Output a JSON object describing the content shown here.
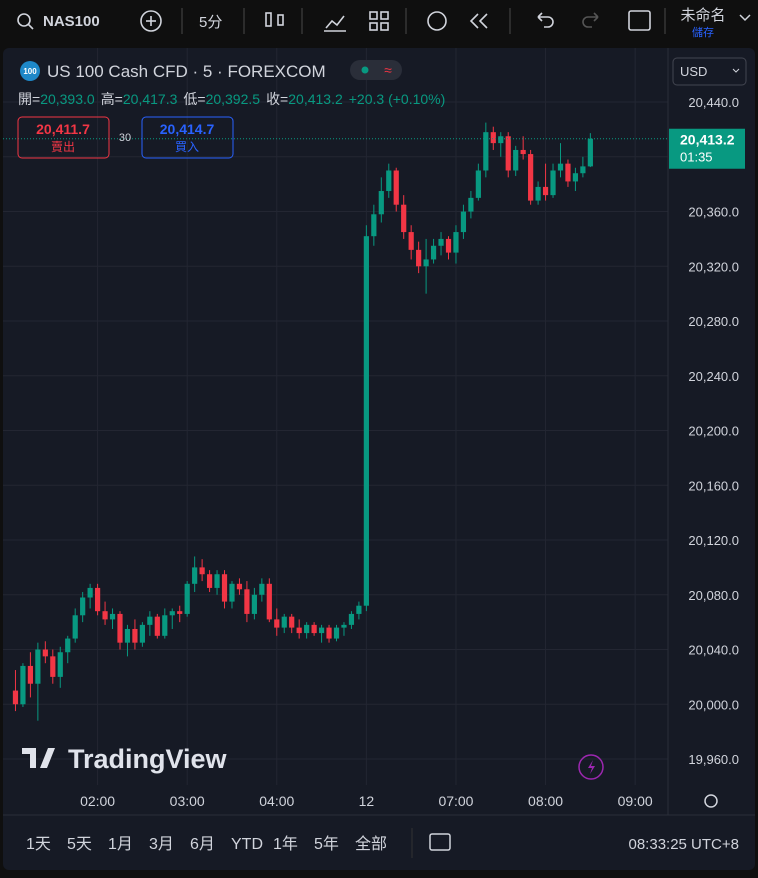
{
  "toolbar": {
    "symbol": "NAS100",
    "interval": "5分",
    "layout_name": "未命名",
    "save": "儲存"
  },
  "chart_data": {
    "type": "candlestick",
    "title": "US 100 Cash CFD · 5 · FOREXCOM",
    "legend": [
      {
        "key": "開=",
        "value": "20,393.0"
      },
      {
        "key": "高=",
        "value": "20,417.3"
      },
      {
        "key": "低=",
        "value": "20,392.5"
      },
      {
        "key": "收=",
        "value": "20,413.2"
      }
    ],
    "change": "+20.3 (+0.10%)",
    "sell": {
      "price": "20,411.7",
      "label": "賣出"
    },
    "spread": "30",
    "buy": {
      "price": "20,414.7",
      "label": "買入"
    },
    "currency": "USD",
    "last_price_label": "20,413.2",
    "countdown": "01:35",
    "watermark": "TradingView",
    "up_color": "#089981",
    "down_color": "#f23645",
    "grid": true,
    "open": [
      20010,
      20000,
      20028,
      20015,
      20040,
      20035,
      20020,
      20038,
      20048,
      20065,
      20078,
      20085,
      20068,
      20062,
      20066,
      20045,
      20055,
      20045,
      20058,
      20064,
      20050,
      20065,
      20068,
      20066,
      20088,
      20100,
      20095,
      20085,
      20095,
      20075,
      20088,
      20084,
      20066,
      20080,
      20088,
      20062,
      20056,
      20064,
      20056,
      20052,
      20058,
      20052,
      20056,
      20048,
      20056,
      20058,
      20066,
      20072,
      20342,
      20358,
      20375,
      20390,
      20365,
      20345,
      20332,
      20320,
      20325,
      20335,
      20340,
      20330,
      20345,
      20360,
      20370,
      20390,
      20418,
      20410,
      20415,
      20390,
      20405,
      20402,
      20368,
      20378,
      20372,
      20390,
      20395,
      20382,
      20388,
      20393.0
    ],
    "high": [
      20025,
      20030,
      20038,
      20045,
      20046,
      20040,
      20042,
      20050,
      20070,
      20082,
      20088,
      20088,
      20075,
      20070,
      20068,
      20058,
      20062,
      20060,
      20068,
      20066,
      20070,
      20070,
      20072,
      20090,
      20108,
      20106,
      20098,
      20098,
      20098,
      20090,
      20092,
      20090,
      20085,
      20092,
      20092,
      20070,
      20066,
      20066,
      20062,
      20060,
      20060,
      20058,
      20058,
      20058,
      20060,
      20068,
      20075,
      20350,
      20365,
      20385,
      20395,
      20392,
      20372,
      20350,
      20338,
      20340,
      20340,
      20345,
      20342,
      20350,
      20365,
      20375,
      20395,
      20425,
      20422,
      20418,
      20418,
      20408,
      20415,
      20405,
      20382,
      20395,
      20395,
      20410,
      20398,
      20392,
      20400,
      20417.3
    ],
    "low": [
      19995,
      19998,
      20005,
      19988,
      20030,
      20015,
      20012,
      20030,
      20045,
      20060,
      20070,
      20065,
      20058,
      20055,
      20040,
      20035,
      20040,
      20042,
      20050,
      20048,
      20048,
      20055,
      20060,
      20064,
      20082,
      20090,
      20082,
      20080,
      20070,
      20070,
      20080,
      20060,
      20062,
      20075,
      20060,
      20050,
      20052,
      20052,
      20048,
      20048,
      20050,
      20045,
      20045,
      20046,
      20050,
      20055,
      20062,
      20068,
      20335,
      20352,
      20370,
      20360,
      20340,
      20325,
      20315,
      20300,
      20322,
      20328,
      20325,
      20322,
      20340,
      20355,
      20368,
      20385,
      20405,
      20400,
      20385,
      20386,
      20398,
      20365,
      20365,
      20368,
      20370,
      20385,
      20378,
      20375,
      20385,
      20392.5
    ],
    "close": [
      20000,
      20028,
      20015,
      20040,
      20035,
      20020,
      20038,
      20048,
      20065,
      20078,
      20085,
      20068,
      20062,
      20066,
      20045,
      20055,
      20045,
      20058,
      20064,
      20050,
      20065,
      20068,
      20066,
      20088,
      20100,
      20095,
      20085,
      20095,
      20075,
      20088,
      20084,
      20066,
      20080,
      20088,
      20062,
      20056,
      20064,
      20056,
      20052,
      20058,
      20052,
      20056,
      20048,
      20056,
      20058,
      20066,
      20072,
      20342,
      20358,
      20375,
      20390,
      20365,
      20345,
      20332,
      20320,
      20325,
      20335,
      20340,
      20330,
      20345,
      20360,
      20370,
      20390,
      20418,
      20410,
      20415,
      20390,
      20405,
      20402,
      20368,
      20378,
      20372,
      20390,
      20395,
      20382,
      20388,
      20393,
      20413.2
    ],
    "xlim": [
      -1.67,
      87.4
    ],
    "xticks": [
      {
        "value": 11,
        "label": "02:00"
      },
      {
        "value": 23,
        "label": "03:00"
      },
      {
        "value": 35,
        "label": "04:00"
      },
      {
        "value": 47,
        "label": "12"
      },
      {
        "value": 59,
        "label": "07:00"
      },
      {
        "value": 71,
        "label": "08:00"
      },
      {
        "value": 83,
        "label": "09:00"
      }
    ],
    "ylim": [
      19941,
      20479.5
    ],
    "yticks": [
      {
        "value": 20440,
        "label": "20,440.0"
      },
      {
        "value": 20400,
        "label": "20,400.0"
      },
      {
        "value": 20360,
        "label": "20,360.0"
      },
      {
        "value": 20320,
        "label": "20,320.0"
      },
      {
        "value": 20280,
        "label": "20,280.0"
      },
      {
        "value": 20240,
        "label": "20,240.0"
      },
      {
        "value": 20200,
        "label": "20,200.0"
      },
      {
        "value": 20160,
        "label": "20,160.0"
      },
      {
        "value": 20120,
        "label": "20,120.0"
      },
      {
        "value": 20080,
        "label": "20,080.0"
      },
      {
        "value": 20040,
        "label": "20,040.0"
      },
      {
        "value": 20000,
        "label": "20,000.0"
      },
      {
        "value": 19960,
        "label": "19,960.0"
      }
    ]
  },
  "bottom_bar": {
    "ranges": [
      "1天",
      "5天",
      "1月",
      "3月",
      "6月",
      "YTD",
      "1年",
      "5年",
      "全部"
    ],
    "clock": "08:33:25 UTC+8"
  }
}
